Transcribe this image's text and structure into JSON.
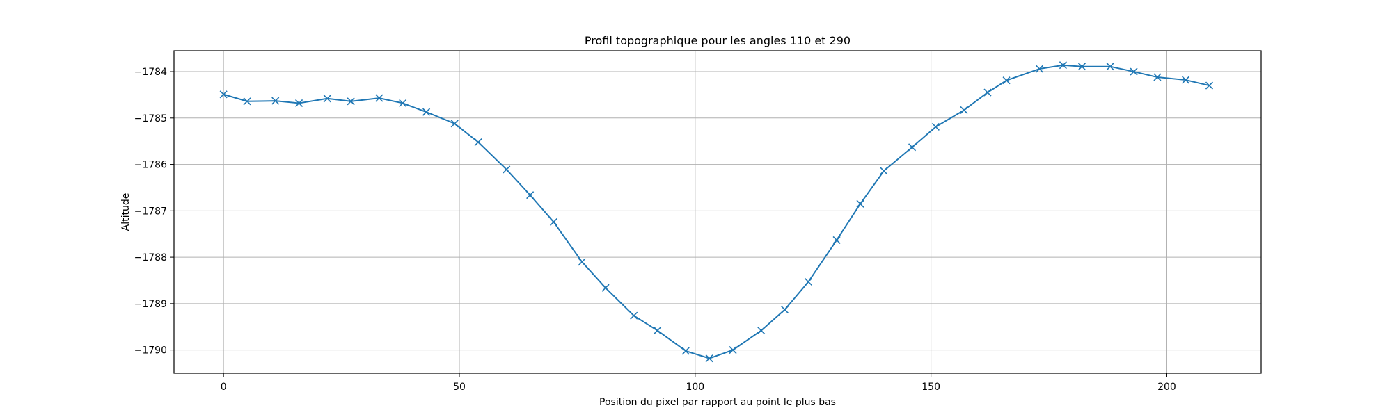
{
  "chart_data": {
    "type": "line",
    "title": "Profil topographique pour les angles 110 et 290",
    "xlabel": "Position du pixel par rapport au point le plus bas",
    "ylabel": "Altitude",
    "xlim": [
      -10.5,
      220
    ],
    "ylim": [
      -1790.5,
      -1783.55
    ],
    "x_ticks": [
      0,
      50,
      100,
      150,
      200
    ],
    "y_ticks": [
      -1790,
      -1789,
      -1788,
      -1787,
      -1786,
      -1785,
      -1784
    ],
    "x_tick_labels": [
      "0",
      "50",
      "100",
      "150",
      "200"
    ],
    "y_tick_labels": [
      "−1790",
      "−1789",
      "−1788",
      "−1787",
      "−1786",
      "−1785",
      "−1784"
    ],
    "grid": true,
    "legend": "none",
    "series": [
      {
        "color": "#1f77b4",
        "marker": "x",
        "x": [
          0,
          5,
          11,
          16,
          22,
          27,
          33,
          38,
          43,
          49,
          54,
          60,
          65,
          70,
          76,
          81,
          87,
          92,
          98,
          103,
          108,
          114,
          119,
          124,
          130,
          135,
          140,
          146,
          151,
          157,
          162,
          166,
          173,
          178,
          182,
          188,
          193,
          198,
          204,
          209
        ],
        "values": [
          -1784.49,
          -1784.64,
          -1784.63,
          -1784.68,
          -1784.58,
          -1784.64,
          -1784.57,
          -1784.68,
          -1784.87,
          -1785.12,
          -1785.52,
          -1786.11,
          -1786.66,
          -1787.24,
          -1788.1,
          -1788.66,
          -1789.26,
          -1789.58,
          -1790.02,
          -1790.18,
          -1790.0,
          -1789.58,
          -1789.13,
          -1788.53,
          -1787.63,
          -1786.85,
          -1786.14,
          -1785.63,
          -1785.19,
          -1784.83,
          -1784.45,
          -1784.19,
          -1783.94,
          -1783.86,
          -1783.89,
          -1783.89,
          -1784.0,
          -1784.12,
          -1784.18,
          -1784.3
        ]
      }
    ]
  }
}
